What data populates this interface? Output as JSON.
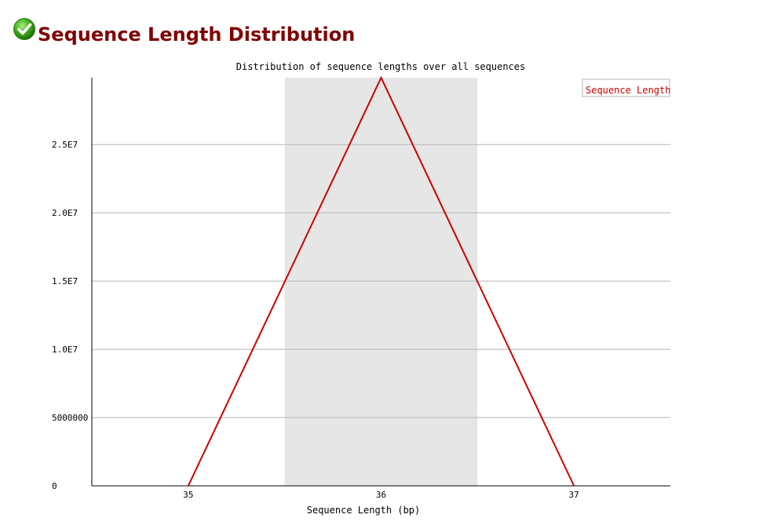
{
  "header": {
    "title": "Sequence Length Distribution",
    "status_icon": "check-circle-icon",
    "status": "pass"
  },
  "chart_data": {
    "type": "line",
    "title": "Distribution of sequence lengths over all sequences",
    "xlabel": "Sequence Length (bp)",
    "ylabel": "",
    "x": [
      35,
      36,
      37
    ],
    "xticks": [
      "35",
      "36",
      "37"
    ],
    "series": [
      {
        "name": "Sequence Length",
        "values": [
          0,
          29900000,
          0
        ],
        "color": "#cc0000"
      }
    ],
    "ylim": [
      0,
      29900000
    ],
    "yticks": [
      {
        "value": 0,
        "label": "0"
      },
      {
        "value": 5000000,
        "label": "5000000"
      },
      {
        "value": 10000000,
        "label": "1.0E7"
      },
      {
        "value": 15000000,
        "label": "1.5E7"
      },
      {
        "value": 20000000,
        "label": "2.0E7"
      },
      {
        "value": 25000000,
        "label": "2.5E7"
      }
    ],
    "highlight_band": {
      "from": 35.5,
      "to": 36.5,
      "color": "#e6e6e6"
    },
    "grid": true,
    "grid_color": "#b4b4b4",
    "legend_position": "top-right"
  }
}
